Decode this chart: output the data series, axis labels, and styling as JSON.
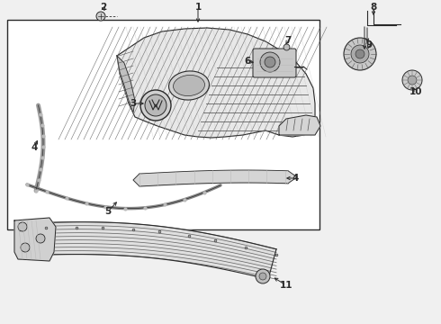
{
  "bg_color": "#f0f0f0",
  "line_color": "#2a2a2a",
  "box_color": "#f0f0f0",
  "box_border": "#2a2a2a",
  "fg_gray": "#888888",
  "lg": "#bbbbbb",
  "dg": "#555555",
  "fig_w": 4.9,
  "fig_h": 3.6,
  "dpi": 100
}
